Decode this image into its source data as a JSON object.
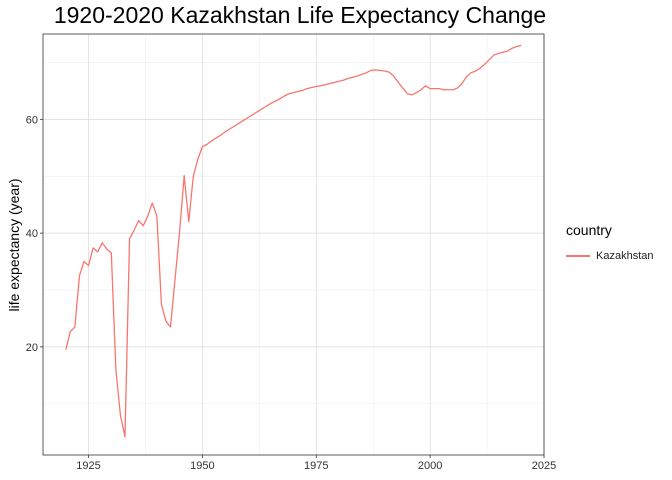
{
  "chart_data": {
    "type": "line",
    "title": "1920-2020 Kazakhstan Life Expectancy Change",
    "xlabel": "",
    "ylabel": "life expectancy (year)",
    "xlim": [
      1915,
      2025
    ],
    "ylim": [
      1,
      75
    ],
    "xticks": [
      1925,
      1950,
      1975,
      2000,
      2025
    ],
    "yticks": [
      20,
      40,
      60
    ],
    "grid": true,
    "legend": {
      "title": "country",
      "position": "right"
    },
    "series": [
      {
        "name": "Kazakhstan",
        "color": "#F8766D",
        "x": [
          1920,
          1921,
          1922,
          1923,
          1924,
          1925,
          1926,
          1927,
          1928,
          1929,
          1930,
          1931,
          1932,
          1933,
          1934,
          1935,
          1936,
          1937,
          1938,
          1939,
          1940,
          1941,
          1942,
          1943,
          1944,
          1945,
          1946,
          1947,
          1948,
          1949,
          1950,
          1951,
          1952,
          1953,
          1954,
          1955,
          1956,
          1957,
          1958,
          1959,
          1960,
          1961,
          1962,
          1963,
          1964,
          1965,
          1966,
          1967,
          1968,
          1969,
          1970,
          1971,
          1972,
          1973,
          1974,
          1975,
          1976,
          1977,
          1978,
          1979,
          1980,
          1981,
          1982,
          1983,
          1984,
          1985,
          1986,
          1987,
          1988,
          1989,
          1990,
          1991,
          1992,
          1993,
          1994,
          1995,
          1996,
          1997,
          1998,
          1999,
          2000,
          2001,
          2002,
          2003,
          2004,
          2005,
          2006,
          2007,
          2008,
          2009,
          2010,
          2011,
          2012,
          2013,
          2014,
          2015,
          2016,
          2017,
          2018,
          2019,
          2020
        ],
        "y": [
          19.5,
          22.7,
          23.5,
          32.5,
          35,
          34.3,
          37.4,
          36.7,
          38.3,
          37.2,
          36.5,
          16,
          8,
          4.2,
          39,
          40.5,
          42.2,
          41.3,
          43,
          45.3,
          43,
          27.5,
          24.5,
          23.5,
          32,
          40.3,
          50.1,
          42,
          50,
          53,
          55.2,
          55.6,
          56.2,
          56.7,
          57.2,
          57.8,
          58.3,
          58.8,
          59.3,
          59.8,
          60.3,
          60.8,
          61.3,
          61.8,
          62.3,
          62.8,
          63.2,
          63.6,
          64.1,
          64.5,
          64.7,
          64.9,
          65.1,
          65.4,
          65.6,
          65.8,
          65.9,
          66.1,
          66.3,
          66.5,
          66.7,
          66.9,
          67.2,
          67.4,
          67.6,
          67.9,
          68.2,
          68.6,
          68.7,
          68.6,
          68.5,
          68.3,
          67.6,
          66.5,
          65.5,
          64.5,
          64.3,
          64.7,
          65.2,
          65.9,
          65.4,
          65.4,
          65.4,
          65.2,
          65.2,
          65.2,
          65.5,
          66.3,
          67.5,
          68.2,
          68.5,
          69,
          69.7,
          70.5,
          71.3,
          71.6,
          71.8,
          72,
          72.5,
          72.8,
          73
        ]
      }
    ]
  }
}
